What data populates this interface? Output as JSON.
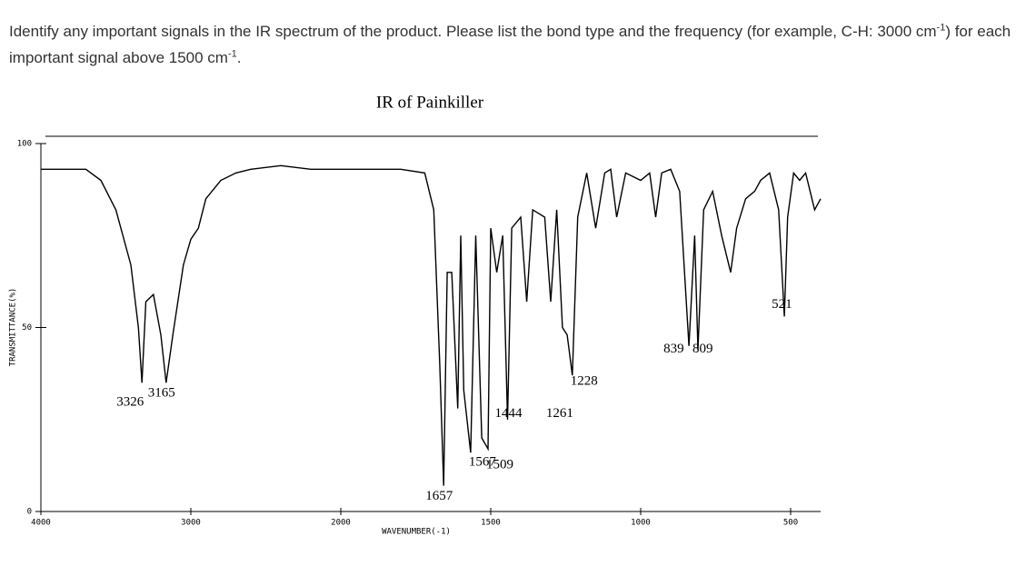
{
  "question": [
    "Identify any important signals in the IR spectrum of the product. Please list the bond type and the frequency (for example, C-H: 3000 cm",
    "-1",
    ") for each important signal above 1500 cm",
    "-1",
    "."
  ],
  "chart_data": {
    "type": "line",
    "title": "IR of Painkiller",
    "x_label": "WAVENUMBER(-1)",
    "y_label": "TRANSMITTANCE(%)",
    "x": [
      4000,
      3700,
      3600,
      3500,
      3400,
      3350,
      3326,
      3300,
      3250,
      3200,
      3165,
      3120,
      3050,
      3000,
      2950,
      2900,
      2800,
      2700,
      2600,
      2400,
      2200,
      2000,
      1900,
      1800,
      1720,
      1690,
      1670,
      1657,
      1645,
      1630,
      1610,
      1600,
      1590,
      1567,
      1550,
      1530,
      1509,
      1500,
      1480,
      1460,
      1444,
      1430,
      1400,
      1380,
      1360,
      1320,
      1300,
      1280,
      1261,
      1245,
      1228,
      1210,
      1180,
      1150,
      1120,
      1100,
      1080,
      1050,
      1000,
      970,
      950,
      930,
      900,
      870,
      839,
      820,
      809,
      790,
      760,
      730,
      700,
      680,
      650,
      620,
      600,
      570,
      540,
      521,
      510,
      490,
      470,
      450,
      420,
      400
    ],
    "values": [
      93,
      93,
      90,
      82,
      67,
      50,
      35,
      57,
      59,
      48,
      35,
      48,
      67,
      74,
      77,
      85,
      90,
      92,
      93,
      94,
      93,
      93,
      93,
      93,
      92,
      82,
      40,
      7,
      65,
      65,
      28,
      75,
      33,
      16,
      75,
      20,
      17,
      77,
      65,
      75,
      25,
      77,
      80,
      57,
      82,
      80,
      57,
      82,
      50,
      48,
      37,
      80,
      92,
      77,
      92,
      93,
      80,
      92,
      90,
      92,
      80,
      92,
      93,
      87,
      45,
      75,
      44,
      82,
      87,
      75,
      65,
      77,
      85,
      87,
      90,
      92,
      82,
      53,
      80,
      92,
      90,
      92,
      82,
      85
    ],
    "color": "#000000",
    "peaks": [
      {
        "x": 3326,
        "y": 35,
        "label": "3326"
      },
      {
        "x": 3165,
        "y": 35,
        "label": "3165"
      },
      {
        "x": 1657,
        "y": 7,
        "label": "1657"
      },
      {
        "x": 1567,
        "y": 16,
        "label": "1567"
      },
      {
        "x": 1509,
        "y": 17,
        "label": "1509"
      },
      {
        "x": 1444,
        "y": 25,
        "label": "1444"
      },
      {
        "x": 1261,
        "y": 50,
        "label": "1261"
      },
      {
        "x": 1228,
        "y": 37,
        "label": "1228"
      },
      {
        "x": 839,
        "y": 45,
        "label": "839"
      },
      {
        "x": 809,
        "y": 44,
        "label": "809"
      },
      {
        "x": 521,
        "y": 53,
        "label": "521"
      }
    ],
    "xlim": [
      4000,
      400
    ],
    "xticks": [
      4000,
      3000,
      2000,
      1500,
      1000,
      500
    ],
    "ylim": [
      0,
      100
    ],
    "yticks": [
      0,
      50,
      100
    ]
  }
}
